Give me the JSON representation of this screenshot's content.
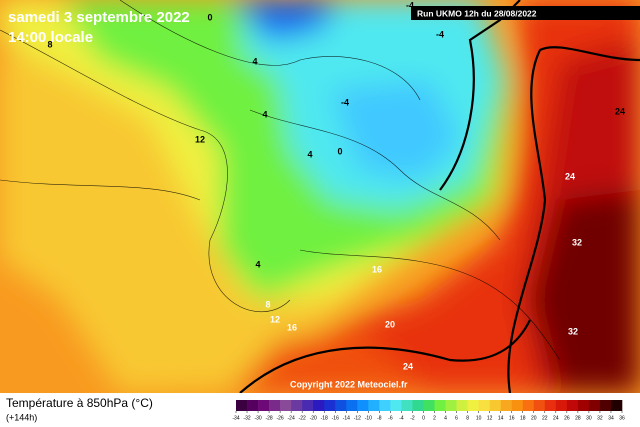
{
  "header": {
    "date": "samedi 3 septembre 2022",
    "time": "14:00 locale"
  },
  "run": "Run UKMO 12h du 28/08/2022",
  "copyright": "Copyright 2022 Meteociel.fr",
  "legend": {
    "title": "Température à 850hPa (°C)",
    "lead": "(+144h)",
    "ticks": [
      -34,
      -32,
      -30,
      -28,
      -26,
      -24,
      -22,
      -20,
      -18,
      -16,
      -14,
      -12,
      -10,
      -8,
      -6,
      -4,
      -2,
      0,
      2,
      4,
      6,
      8,
      10,
      12,
      14,
      16,
      18,
      20,
      22,
      24,
      26,
      28,
      30,
      32,
      34,
      36
    ],
    "colors": [
      "#3a0040",
      "#55005e",
      "#6e0a78",
      "#7a2a8a",
      "#8a4a9a",
      "#6a3aa0",
      "#4a2ab0",
      "#2a1ac0",
      "#1a30d0",
      "#1050e0",
      "#0a70f0",
      "#1090ff",
      "#20b0ff",
      "#40d0ff",
      "#50e8f0",
      "#40e0c0",
      "#30d890",
      "#40e060",
      "#70f040",
      "#a0f040",
      "#d0f040",
      "#f0f040",
      "#f8e040",
      "#f8c830",
      "#f8a820",
      "#f89010",
      "#f87010",
      "#f05010",
      "#e83010",
      "#d81808",
      "#c00808",
      "#a00000",
      "#800000",
      "#500000",
      "#200000"
    ]
  },
  "map_labels": [
    "0",
    "-4",
    "-4",
    "-4",
    "8",
    "12",
    "4",
    "4",
    "4",
    "0",
    "4",
    "8",
    "12",
    "16",
    "16",
    "20",
    "24",
    "24",
    "32",
    "32",
    "24"
  ]
}
